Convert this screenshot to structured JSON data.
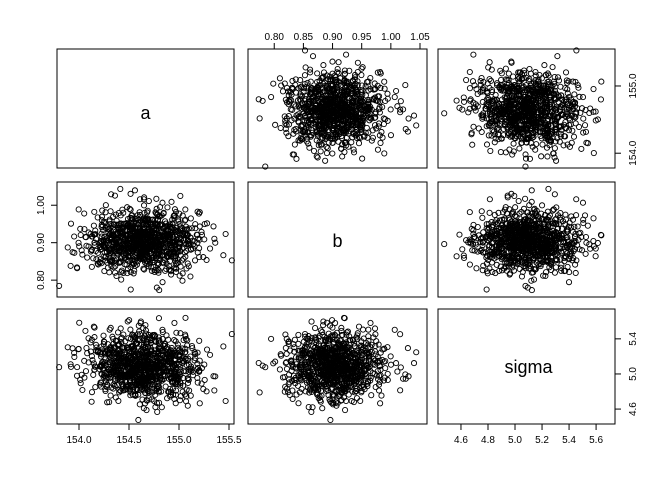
{
  "chart_data": {
    "type": "scatter",
    "layout": "pairs-matrix",
    "variables": [
      "a",
      "b",
      "sigma"
    ],
    "n_points": 1000,
    "ranges": {
      "a": [
        153.78,
        155.55
      ],
      "b": [
        0.755,
        1.062
      ],
      "sigma": [
        4.43,
        5.74
      ]
    },
    "ticks": {
      "a": [
        154.0,
        154.5,
        155.0,
        155.5
      ],
      "a_right": [
        154.0,
        155.0
      ],
      "b": [
        0.8,
        0.85,
        0.9,
        0.95,
        1.0,
        1.05
      ],
      "b_left": [
        0.8,
        0.9,
        1.0
      ],
      "sigma": [
        4.6,
        4.8,
        5.0,
        5.2,
        5.4,
        5.6
      ],
      "sigma_right": [
        4.6,
        5.0,
        5.4
      ]
    },
    "tick_labels": {
      "a_bottom": [
        "154.0",
        "154.5",
        "155.0",
        "155.5"
      ],
      "a_right": [
        "154.0",
        "155.0"
      ],
      "b_top": [
        "0.80",
        "0.85",
        "0.90",
        "0.95",
        "1.00",
        "1.05"
      ],
      "b_left": [
        "0.80",
        "0.90",
        "1.00"
      ],
      "sigma_bottom": [
        "4.6",
        "4.8",
        "5.0",
        "5.2",
        "5.4",
        "5.6"
      ],
      "sigma_right": [
        "4.6",
        "5.0",
        "5.4"
      ]
    },
    "distribution": {
      "a": {
        "mean": 154.65,
        "sd": 0.27
      },
      "b": {
        "mean": 0.905,
        "sd": 0.043
      },
      "sigma": {
        "mean": 5.1,
        "sd": 0.19
      }
    },
    "point_marker": "open-circle",
    "marker_color": "#000000",
    "grid": false,
    "legend": "none"
  }
}
